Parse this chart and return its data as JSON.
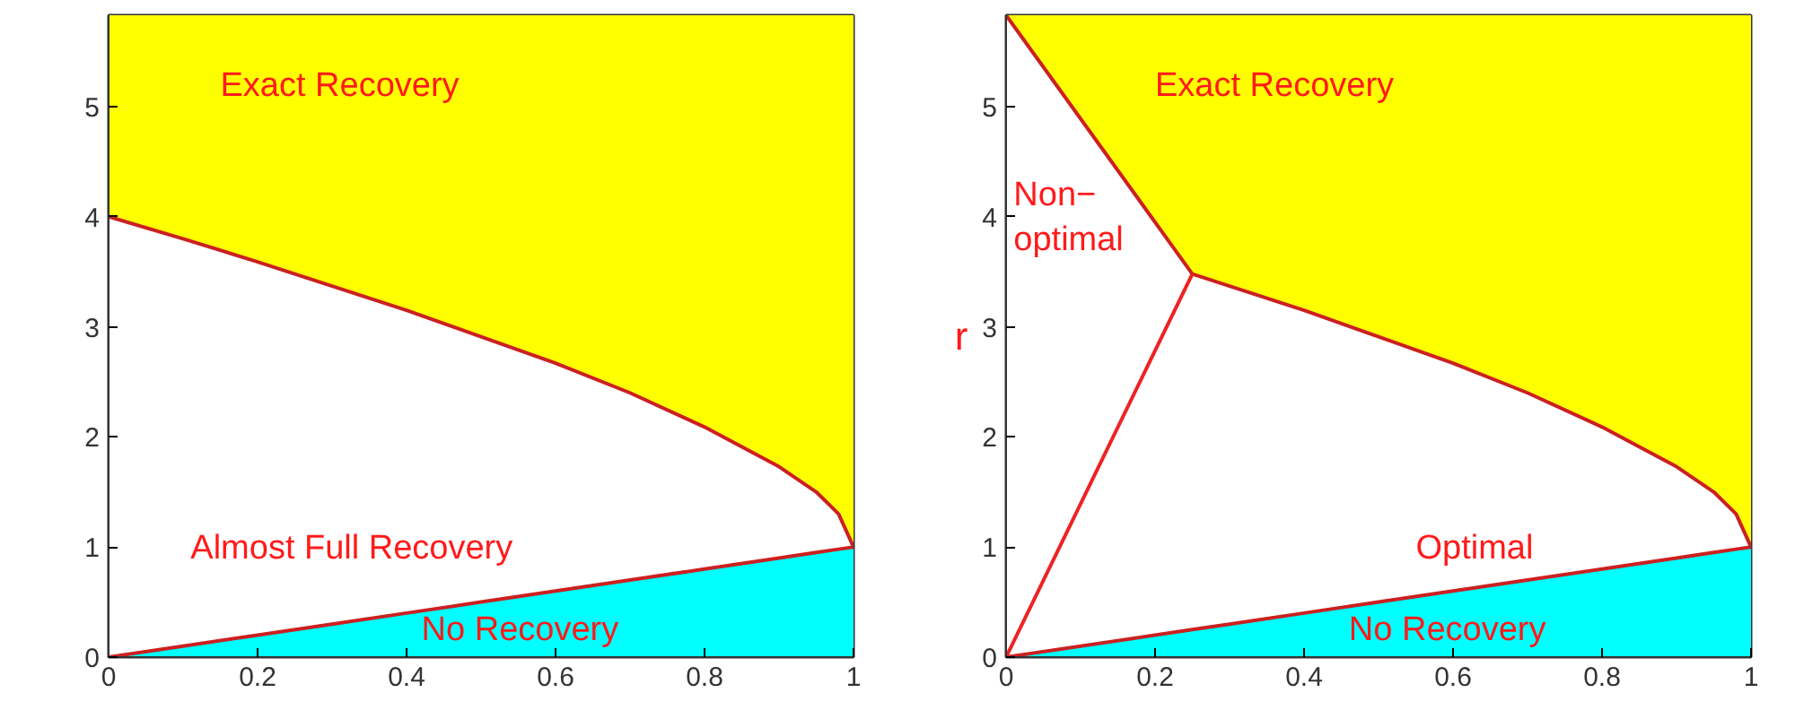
{
  "chart_data": [
    {
      "type": "area",
      "stacked": true,
      "xlim": [
        0,
        1
      ],
      "ylim": [
        0,
        5.83
      ],
      "xticks": [
        0,
        0.2,
        0.4,
        0.6,
        0.8,
        1
      ],
      "yticks": [
        0,
        1,
        2,
        3,
        4,
        5
      ],
      "x": [
        0,
        0.1,
        0.2,
        0.3,
        0.4,
        0.5,
        0.6,
        0.7,
        0.8,
        0.9,
        0.95,
        0.98,
        1
      ],
      "series": [
        {
          "color": "#00ffff",
          "values": [
            0,
            0.1,
            0.2,
            0.3,
            0.4,
            0.5,
            0.6,
            0.7,
            0.8,
            0.9,
            0.95,
            0.98,
            1
          ]
        },
        {
          "color": "#ffffff",
          "values": [
            4,
            3.7,
            3.39,
            3.07,
            2.75,
            2.41,
            2.07,
            1.7,
            1.29,
            0.83,
            0.55,
            0.32,
            0
          ]
        },
        {
          "color": "#ffff00",
          "values": [
            1.83,
            2.03,
            2.24,
            2.46,
            2.68,
            2.92,
            3.16,
            3.43,
            3.74,
            4.1,
            4.33,
            4.53,
            4.83
          ]
        }
      ],
      "annotations": [
        "Exact Recovery",
        "Almost Full Recovery",
        "No Recovery"
      ]
    },
    {
      "type": "area",
      "stacked": true,
      "ylabel": "r",
      "xlim": [
        0,
        1
      ],
      "ylim": [
        0,
        5.83
      ],
      "xticks": [
        0,
        0.2,
        0.4,
        0.6,
        0.8,
        1
      ],
      "yticks": [
        0,
        1,
        2,
        3,
        4,
        5
      ],
      "x": [
        0,
        0.25,
        0.3,
        0.4,
        0.5,
        0.6,
        0.7,
        0.8,
        0.9,
        0.95,
        0.98,
        1
      ],
      "series": [
        {
          "color": "#00ffff",
          "values": [
            0,
            0.25,
            0.3,
            0.4,
            0.5,
            0.6,
            0.7,
            0.8,
            0.9,
            0.95,
            0.98,
            1
          ]
        },
        {
          "color": "#ffffff",
          "values": [
            5.83,
            3.23,
            3.07,
            2.75,
            2.41,
            2.07,
            1.7,
            1.29,
            0.83,
            0.55,
            0.32,
            0
          ]
        },
        {
          "color": "#ffff00",
          "values": [
            0,
            2.35,
            2.46,
            2.68,
            2.92,
            3.16,
            3.43,
            3.74,
            4.1,
            4.33,
            4.53,
            4.83
          ]
        },
        {
          "type": "line",
          "color": "#ee2222",
          "x": [
            0,
            0.25
          ],
          "values": [
            0,
            3.48
          ]
        }
      ],
      "annotations": [
        "Exact Recovery",
        "Non−\noptimal",
        "Optimal",
        "No Recovery"
      ]
    }
  ]
}
